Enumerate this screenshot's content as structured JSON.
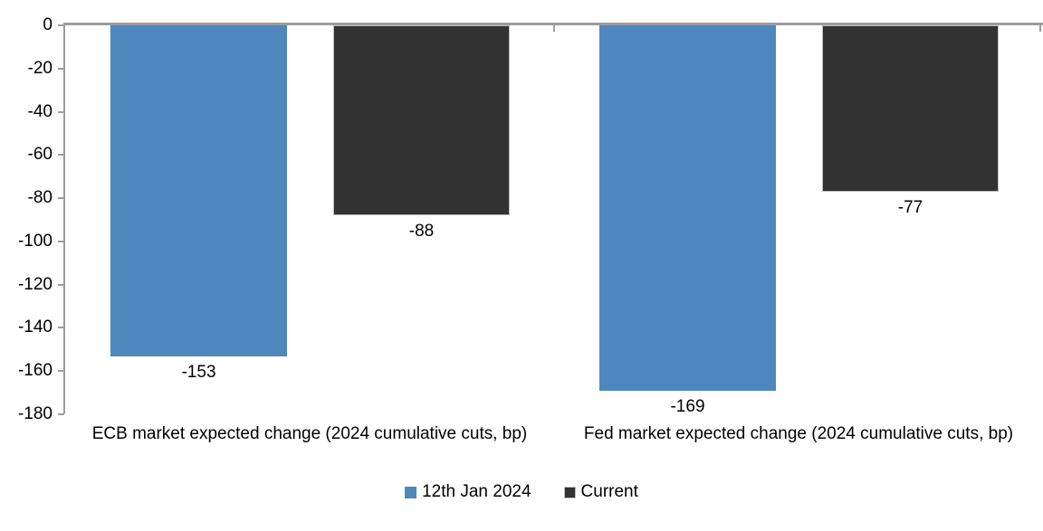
{
  "chart_data": {
    "type": "bar",
    "title": "",
    "categories": [
      "ECB market expected change (2024 cumulative cuts, bp)",
      "Fed market expected change (2024 cumulative cuts, bp)"
    ],
    "series": [
      {
        "name": "12th Jan 2024",
        "color": "#4E87BE",
        "border_color": "",
        "values": [
          -153,
          -169
        ]
      },
      {
        "name": "Current",
        "color": "#323232",
        "border_color": "#BEBEBE",
        "values": [
          -88,
          -77
        ]
      }
    ],
    "data_labels": [
      [
        "-153",
        "-169"
      ],
      [
        "-88",
        "-77"
      ]
    ],
    "yticks": [
      0,
      -20,
      -40,
      -60,
      -80,
      -100,
      -120,
      -140,
      -160,
      -180
    ],
    "ylim": [
      0,
      -180
    ],
    "xlabel": "",
    "ylabel": "",
    "grid": false,
    "legend_position": "bottom",
    "axis_color": "#9C9C9C",
    "text_color": "#000000",
    "background_color": "#FFFFFF"
  }
}
